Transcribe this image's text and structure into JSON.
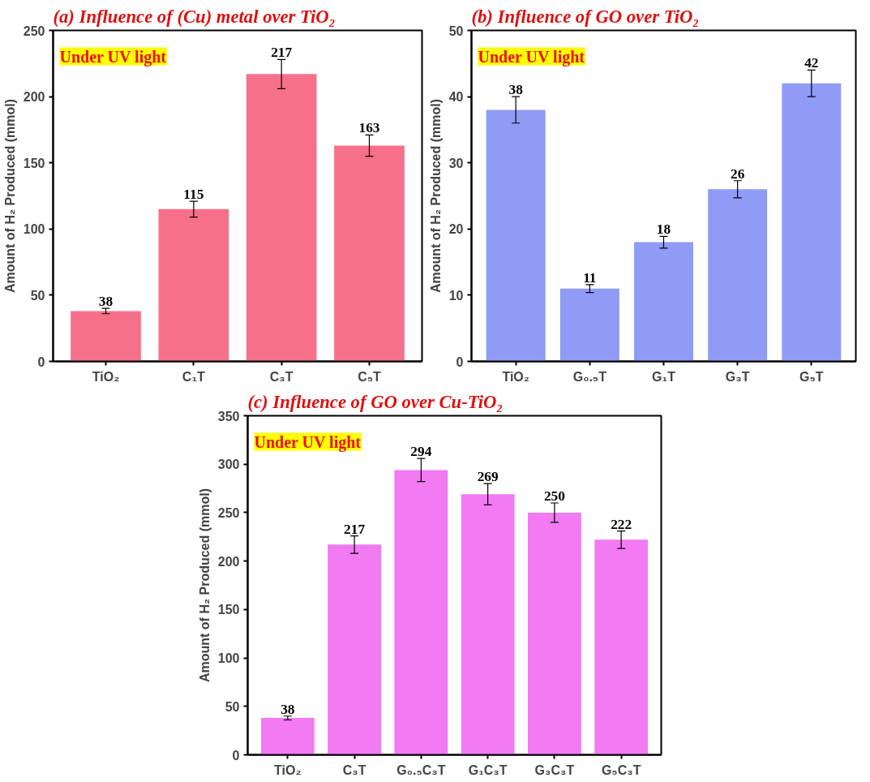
{
  "chart_data": [
    {
      "type": "bar",
      "title": "(a) Influence of (Cu) metal over TiO₂",
      "ylabel": "Amount of H₂ Produced (mmol)",
      "categories": [
        "TiO₂",
        "C₁T",
        "C₃T",
        "C₅T"
      ],
      "values": [
        38,
        115,
        217,
        163
      ],
      "errors": [
        2,
        6,
        11,
        8
      ],
      "color": "#f7708a",
      "ylim": [
        0,
        250
      ],
      "yticks": [
        0,
        50,
        100,
        150,
        200,
        250
      ],
      "data_labels": true,
      "annotations": [
        "Under UV light"
      ]
    },
    {
      "type": "bar",
      "title": "(b) Influence of GO over TiO₂",
      "ylabel": "Amount of H₂ Produced (mmol)",
      "categories": [
        "TiO₂",
        "G₀.₅T",
        "G₁T",
        "G₃T",
        "G₅T"
      ],
      "values": [
        38,
        11,
        18,
        26,
        42
      ],
      "errors": [
        2,
        0.6,
        0.9,
        1.3,
        2
      ],
      "color": "#8f9bf5",
      "ylim": [
        0,
        50
      ],
      "yticks": [
        0,
        10,
        20,
        30,
        40,
        50
      ],
      "data_labels": true,
      "annotations": [
        "Under UV light"
      ]
    },
    {
      "type": "bar",
      "title": "(c) Influence of GO over Cu-TiO₂",
      "ylabel": "Amount of H₂ Produced (mmol)",
      "categories": [
        "TiO₂",
        "C₃T",
        "G₀.₅C₃T",
        "G₁C₃T",
        "G₃C₃T",
        "G₅C₃T"
      ],
      "values": [
        38,
        217,
        294,
        269,
        250,
        222
      ],
      "errors": [
        2,
        9,
        12,
        11,
        10,
        9
      ],
      "color": "#f27af2",
      "ylim": [
        0,
        350
      ],
      "yticks": [
        0,
        50,
        100,
        150,
        200,
        250,
        300,
        350
      ],
      "data_labels": true,
      "annotations": [
        "Under UV light"
      ]
    }
  ]
}
